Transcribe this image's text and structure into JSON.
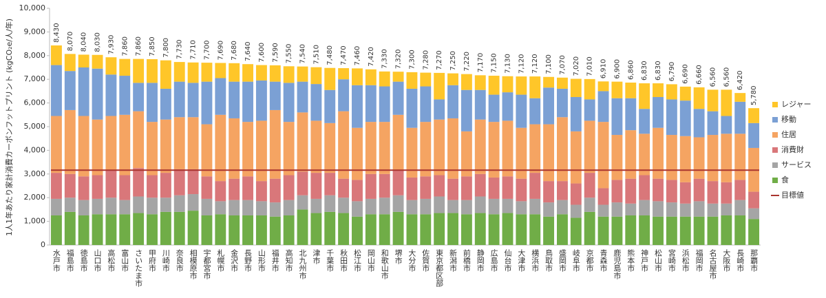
{
  "chart_data": {
    "type": "stacked_bar",
    "ylabel": "1人1年あたり家計消費カーボンフットプリント (kgCO₂e/人/年)",
    "categories": [
      "水戸市",
      "福島市",
      "徳島市",
      "山口市",
      "高松市",
      "富山市",
      "さいたま市",
      "甲府市",
      "川崎市",
      "奈良市",
      "相模原市",
      "宇都宮市",
      "札幌市",
      "金沢市",
      "長野市",
      "山形市",
      "福井市",
      "高知市",
      "北九州市",
      "津市",
      "千葉市",
      "秋田市",
      "松江市",
      "岡山市",
      "和歌山市",
      "堺市",
      "大分市",
      "佐賀市",
      "東京都区部",
      "新潟市",
      "前橋市",
      "静岡市",
      "広島市",
      "仙台市",
      "大津市",
      "横浜市",
      "鳥取市",
      "盛岡市",
      "岐阜市",
      "京都市",
      "青森市",
      "鹿児島市",
      "熊本市",
      "神戸市",
      "松山市",
      "宮崎市",
      "浜松市",
      "福岡市",
      "名古屋市",
      "大阪市",
      "長崎市",
      "那覇市"
    ],
    "series": [
      {
        "name": "食",
        "color": "#70ad47",
        "values": [
          1250,
          1400,
          1250,
          1300,
          1300,
          1300,
          1350,
          1300,
          1400,
          1400,
          1450,
          1250,
          1300,
          1250,
          1250,
          1250,
          1200,
          1250,
          1500,
          1350,
          1400,
          1350,
          1200,
          1300,
          1300,
          1400,
          1300,
          1300,
          1350,
          1350,
          1300,
          1350,
          1300,
          1350,
          1300,
          1300,
          1200,
          1300,
          1150,
          1400,
          1200,
          1200,
          1250,
          1250,
          1200,
          1200,
          1200,
          1200,
          1200,
          1250,
          1250,
          1100
        ]
      },
      {
        "name": "サービス",
        "color": "#a5a5a5",
        "values": [
          700,
          600,
          650,
          650,
          700,
          600,
          700,
          700,
          600,
          700,
          700,
          700,
          550,
          650,
          650,
          600,
          600,
          650,
          600,
          600,
          700,
          650,
          650,
          650,
          700,
          700,
          600,
          650,
          700,
          550,
          600,
          700,
          650,
          600,
          550,
          650,
          600,
          600,
          550,
          600,
          500,
          600,
          500,
          650,
          650,
          600,
          550,
          650,
          550,
          500,
          650,
          450
        ]
      },
      {
        "name": "消費財",
        "color": "#d9777a",
        "values": [
          1100,
          1000,
          1000,
          1000,
          1150,
          1050,
          1200,
          950,
          1050,
          1100,
          1050,
          950,
          850,
          900,
          1000,
          850,
          1000,
          1050,
          1000,
          1100,
          950,
          800,
          900,
          1050,
          1000,
          1050,
          950,
          950,
          900,
          900,
          1000,
          950,
          900,
          950,
          950,
          1100,
          900,
          800,
          900,
          1050,
          700,
          950,
          1050,
          1050,
          950,
          950,
          900,
          950,
          950,
          900,
          850,
          700
        ]
      },
      {
        "name": "住居",
        "color": "#f5a462",
        "values": [
          2400,
          2700,
          2550,
          2350,
          2300,
          2550,
          2400,
          2250,
          2250,
          2200,
          2200,
          2200,
          2800,
          2550,
          2300,
          2550,
          2900,
          2250,
          2500,
          2200,
          2100,
          2850,
          2200,
          2200,
          2200,
          2350,
          2100,
          2300,
          2350,
          2550,
          1900,
          2300,
          2350,
          2350,
          2150,
          2050,
          2400,
          2700,
          2200,
          2200,
          2800,
          1900,
          2050,
          1750,
          2150,
          1900,
          1950,
          1750,
          1950,
          2050,
          1950,
          1850
        ]
      },
      {
        "name": "移動",
        "color": "#7ba0d4",
        "values": [
          2150,
          1650,
          2050,
          2150,
          1750,
          1650,
          1200,
          1650,
          1300,
          1500,
          1450,
          1800,
          1550,
          1550,
          1700,
          1700,
          1200,
          1650,
          1300,
          1550,
          1400,
          1350,
          1800,
          1550,
          1500,
          1400,
          1650,
          1500,
          850,
          1400,
          1750,
          1250,
          1150,
          1200,
          1400,
          1100,
          1550,
          1200,
          1450,
          900,
          1300,
          1550,
          1350,
          1050,
          1300,
          1500,
          1500,
          1200,
          1000,
          750,
          1350,
          1050
        ]
      },
      {
        "name": "レジャー",
        "color": "#ffc629",
        "values": [
          830,
          720,
          540,
          580,
          730,
          710,
          1010,
          1000,
          1200,
          830,
          860,
          800,
          640,
          780,
          740,
          650,
          690,
          700,
          640,
          710,
          930,
          470,
          710,
          670,
          630,
          420,
          700,
          580,
          1120,
          500,
          670,
          620,
          800,
          680,
          770,
          920,
          450,
          470,
          770,
          860,
          410,
          700,
          660,
          1080,
          580,
          640,
          590,
          910,
          910,
          1110,
          370,
          630
        ]
      }
    ],
    "totals": {
      "values": [
        8430,
        8070,
        8040,
        8030,
        7930,
        7860,
        7860,
        7850,
        7800,
        7730,
        7710,
        7700,
        7690,
        7680,
        7640,
        7600,
        7590,
        7550,
        7540,
        7510,
        7480,
        7470,
        7460,
        7420,
        7330,
        7320,
        7300,
        7280,
        7270,
        7250,
        7220,
        7170,
        7150,
        7130,
        7120,
        7120,
        7100,
        7070,
        7020,
        7010,
        6910,
        6900,
        6860,
        6830,
        6830,
        6790,
        6690,
        6660,
        6560,
        6560,
        6420,
        5780
      ],
      "value_labels": [
        "8,430",
        "8,070",
        "8,040",
        "8,030",
        "7,930",
        "7,860",
        "7,860",
        "7,850",
        "7,800",
        "7,730",
        "7,710",
        "7,700",
        "7,690",
        "7,680",
        "7,640",
        "7,600",
        "7,590",
        "7,550",
        "7,540",
        "7,510",
        "7,480",
        "7,470",
        "7,460",
        "7,420",
        "7,330",
        "7,320",
        "7,300",
        "7,280",
        "7,270",
        "7,250",
        "7,220",
        "7,170",
        "7,150",
        "7,130",
        "7,120",
        "7,120",
        "7,100",
        "7,070",
        "7,020",
        "7,010",
        "6,910",
        "6,900",
        "6,860",
        "6,830",
        "6,830",
        "6,790",
        "6,690",
        "6,660",
        "6,560",
        "6,560",
        "6,420",
        "5,780"
      ]
    },
    "target": {
      "name": "目標値",
      "value": 3160,
      "color": "#a9342e"
    },
    "ylim": [
      0,
      10000
    ],
    "yticks": [
      0,
      {
        "value": 1000,
        "label": "1,000"
      },
      {
        "value": 2000,
        "label": "2,000"
      },
      {
        "value": 3000,
        "label": "3,000"
      },
      {
        "value": 4000,
        "label": "4,000"
      },
      {
        "value": 5000,
        "label": "5,000"
      },
      {
        "value": 6000,
        "label": "6,000"
      },
      {
        "value": 7000,
        "label": "7,000"
      },
      {
        "value": 8000,
        "label": "8,000"
      },
      {
        "value": 9000,
        "label": "9,000"
      },
      {
        "value": 10000,
        "label": "10,000"
      }
    ],
    "grid": false,
    "legend": "right"
  }
}
